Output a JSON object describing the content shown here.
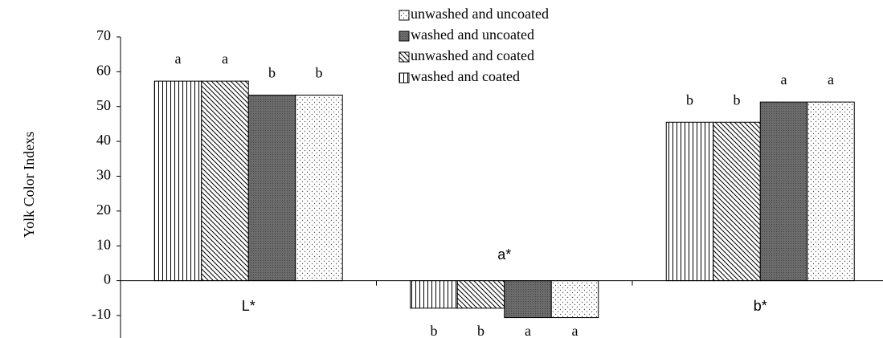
{
  "chart_data": {
    "type": "bar",
    "y_label": "Yolk Color Indexs",
    "categories": [
      "L*",
      "a*",
      "b*"
    ],
    "series": [
      {
        "name": "unwashed and uncoated",
        "pattern": "dots",
        "color": "#ffffff",
        "values": [
          53.3,
          -10.6,
          51.3
        ],
        "letters": [
          "b",
          "a",
          "a"
        ]
      },
      {
        "name": "washed and uncoated",
        "pattern": "dark",
        "color": "#6b6b6b",
        "values": [
          53.3,
          -10.6,
          51.3
        ],
        "letters": [
          "b",
          "a",
          "a"
        ]
      },
      {
        "name": "unwashed and coated",
        "pattern": "diagonal",
        "color": "#ffffff",
        "values": [
          57.3,
          -7.9,
          45.5
        ],
        "letters": [
          "a",
          "b",
          "b"
        ]
      },
      {
        "name": "washed and coated",
        "pattern": "vertical",
        "color": "#ffffff",
        "values": [
          57.3,
          -7.9,
          45.5
        ],
        "letters": [
          "a",
          "b",
          "b"
        ]
      }
    ],
    "ylim": [
      -16,
      70
    ],
    "yticks": [
      -10,
      0,
      10,
      20,
      30,
      40,
      50,
      60,
      70
    ]
  }
}
